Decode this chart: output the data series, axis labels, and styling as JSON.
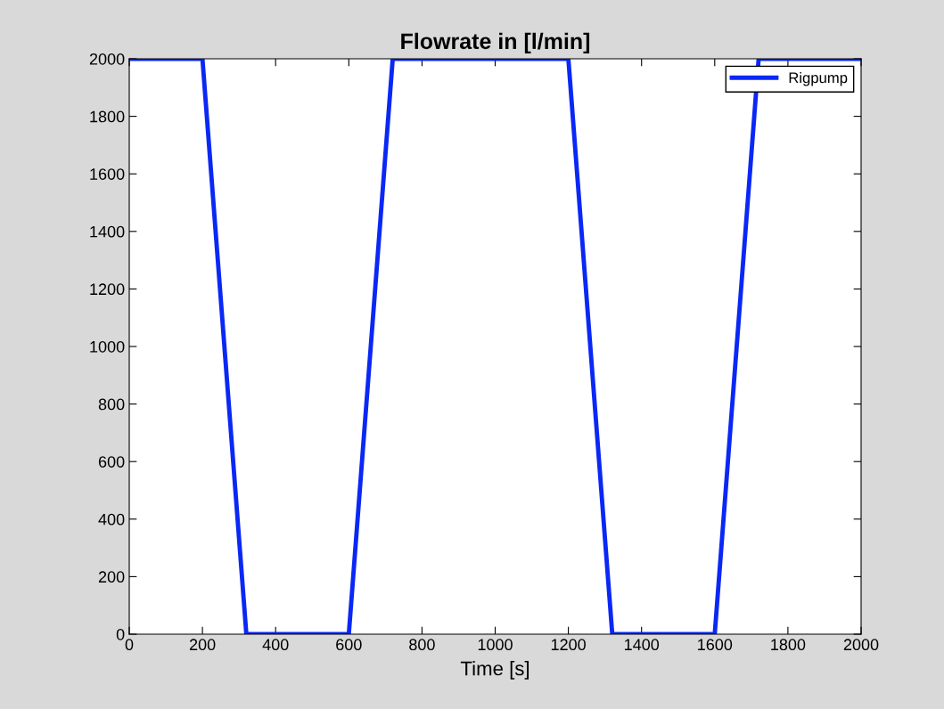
{
  "chart_data": {
    "type": "line",
    "title": "Flowrate in [l/min]",
    "xlabel": "Time [s]",
    "x": [
      0,
      200,
      320,
      600,
      720,
      1200,
      1320,
      1600,
      1720,
      2000
    ],
    "series": [
      {
        "name": "Rigpump",
        "color": "#0a28f5",
        "values": [
          2000,
          2000,
          0,
          0,
          2000,
          2000,
          0,
          0,
          2000,
          2000
        ]
      }
    ],
    "xlim": [
      0,
      2000
    ],
    "xticks": [
      0,
      200,
      400,
      600,
      800,
      1000,
      1200,
      1400,
      1600,
      1800,
      2000
    ],
    "ylim": [
      0,
      2000
    ],
    "yticks": [
      0,
      200,
      400,
      600,
      800,
      1000,
      1200,
      1400,
      1600,
      1800,
      2000
    ],
    "grid": false,
    "legend": "top right",
    "marker": "none",
    "line_style": "solid"
  }
}
